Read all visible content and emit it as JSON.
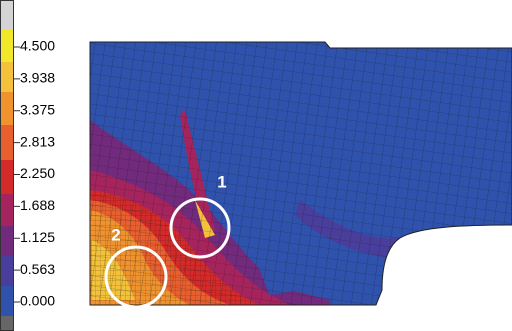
{
  "legend": {
    "labels": [
      "4.500",
      "3.938",
      "3.375",
      "2.813",
      "2.250",
      "1.688",
      "1.125",
      "0.563",
      "0.000"
    ]
  },
  "annotations": [
    "1",
    "2"
  ]
}
